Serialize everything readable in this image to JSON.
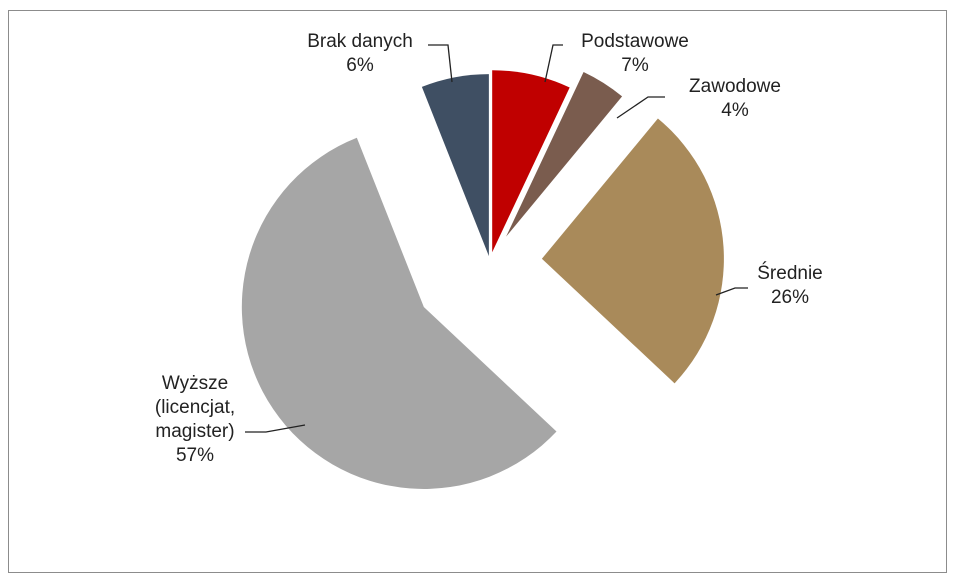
{
  "chart_data": {
    "type": "pie",
    "categories": [
      "Podstawowe",
      "Zawodowe",
      "Średnie",
      "Wyższe (licencjat, magister)",
      "Brak danych"
    ],
    "values": [
      7,
      4,
      26,
      57,
      6
    ],
    "value_labels": [
      "7%",
      "4%",
      "26%",
      "57%",
      "6%"
    ],
    "colors": [
      "#c00000",
      "#7a5c4e",
      "#a98a5a",
      "#a6a6a6",
      "#3f4f63"
    ]
  }
}
